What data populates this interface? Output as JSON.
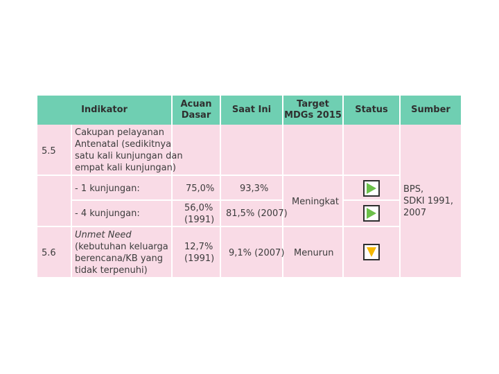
{
  "columns": {
    "indikator": "Indikator",
    "acuan_dasar": [
      "Acuan",
      "Dasar"
    ],
    "saat_ini": "Saat Ini",
    "target": [
      "Target",
      "MDGs 2015"
    ],
    "status": "Status",
    "sumber": "Sumber"
  },
  "rows": {
    "r55": {
      "number": "5.5",
      "indikator": [
        "Cakupan pelayanan",
        "Antenatal (sedikitnya",
        "satu kali kunjungan dan",
        "empat kali kunjungan)"
      ]
    },
    "r55a": {
      "indikator": "- 1 kunjungan:",
      "acuan": "75,0%",
      "saat_ini": "93,3%",
      "status_icon": "green-right-triangle-icon"
    },
    "r55b": {
      "indikator": "- 4 kunjungan:",
      "acuan": [
        "56,0%",
        "(1991)"
      ],
      "saat_ini": "81,5% (2007)",
      "status_icon": "green-right-triangle-icon"
    },
    "r56": {
      "number": "5.6",
      "indikator_italic": "Unmet Need",
      "indikator": [
        "(kebutuhan keluarga",
        "berencana/KB yang",
        "tidak terpenuhi)"
      ],
      "acuan": [
        "12,7%",
        "(1991)"
      ],
      "saat_ini": "9,1% (2007)",
      "target": "Menurun",
      "status_icon": "orange-down-triangle-icon"
    }
  },
  "target_55": "Meningkat",
  "sumber": [
    "BPS,",
    "SDKI 1991,",
    "2007"
  ],
  "colors": {
    "header": "#6fcfb2",
    "body": "#f9dbe6",
    "status_up": "#6cc04a",
    "status_down": "#f5b800"
  }
}
